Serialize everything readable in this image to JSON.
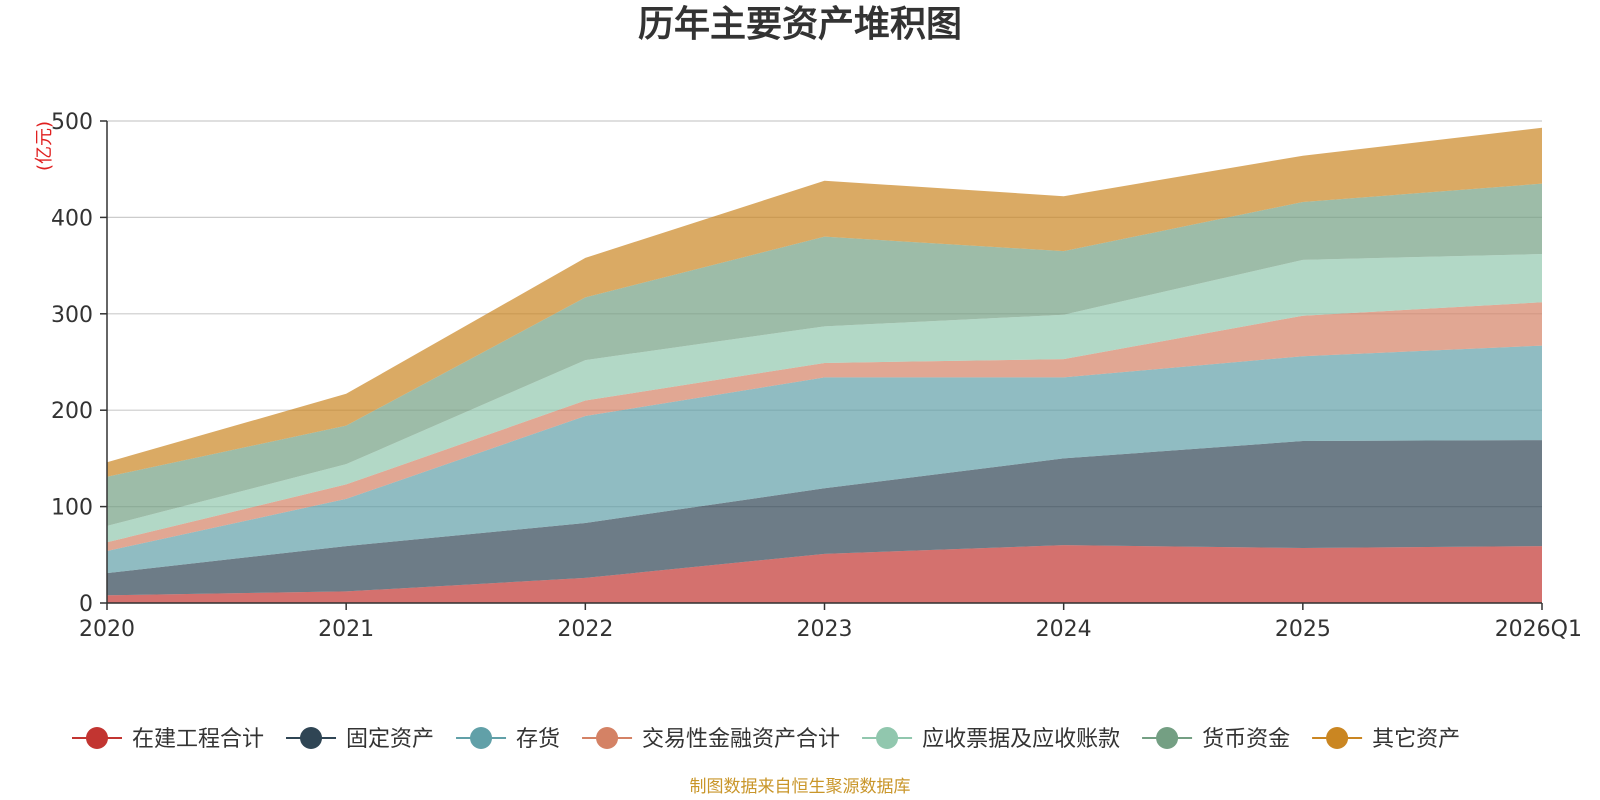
{
  "chart_data": {
    "type": "area",
    "stacked": true,
    "title": "历年主要资产堆积图",
    "unit_label": "(亿元)",
    "categories": [
      "2020",
      "2021",
      "2022",
      "2023",
      "2024",
      "2025",
      "2026Q1"
    ],
    "ylim": [
      0,
      500
    ],
    "yticks": [
      0,
      100,
      200,
      300,
      400,
      500
    ],
    "grid": true,
    "legend_position": "bottom",
    "series": [
      {
        "name": "在建工程合计",
        "color": "#c23531",
        "values": [
          8,
          12,
          26,
          51,
          60,
          57,
          59
        ]
      },
      {
        "name": "固定资产",
        "color": "#2f4554",
        "values": [
          23,
          47,
          57,
          68,
          90,
          111,
          110
        ]
      },
      {
        "name": "存货",
        "color": "#61a0a8",
        "values": [
          23,
          49,
          111,
          115,
          84,
          88,
          98
        ]
      },
      {
        "name": "交易性金融资产合计",
        "color": "#d48265",
        "values": [
          9,
          15,
          16,
          15,
          19,
          42,
          45
        ]
      },
      {
        "name": "应收票据及应收账款",
        "color": "#91c7ae",
        "values": [
          17,
          21,
          42,
          38,
          46,
          58,
          50
        ]
      },
      {
        "name": "货币资金",
        "color": "#749f83",
        "values": [
          51,
          40,
          65,
          93,
          66,
          60,
          73
        ]
      },
      {
        "name": "其它资产",
        "color": "#ca8622",
        "values": [
          15,
          33,
          41,
          58,
          57,
          48,
          58
        ]
      }
    ],
    "source_note": "制图数据来自恒生聚源数据库"
  }
}
